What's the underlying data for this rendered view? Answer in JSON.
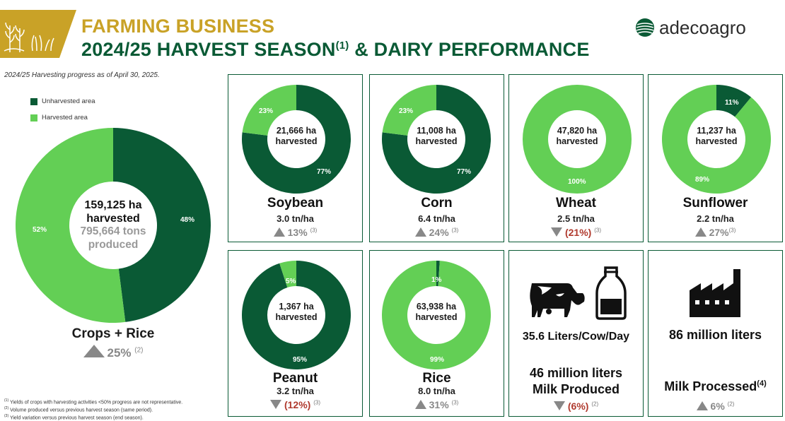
{
  "header": {
    "title_line1": "FARMING BUSINESS",
    "title_line2": "2024/25 HARVEST SEASON",
    "title_line2_sup": "(1)",
    "title_line2_suffix": " & DAIRY PERFORMANCE",
    "brand": "adecoagro"
  },
  "colors": {
    "unharvested": "#0a5a35",
    "harvested": "#63cf55",
    "gold": "#c9a227",
    "negative": "#b03a2e",
    "variation": "#888888"
  },
  "progress_note": "2024/25 Harvesting progress as of April 30, 2025.",
  "legend": {
    "unharvested": "Unharvested area",
    "harvested": "Harvested area"
  },
  "main": {
    "line1": "159,125 ha",
    "line2": "harvested",
    "line3": "795,664 tons",
    "line4": "produced",
    "label": "Crops + Rice",
    "variation": "25%",
    "variation_sup": "(2)"
  },
  "chart_data": [
    {
      "type": "pie",
      "title": "Crops + Rice",
      "categories": [
        "Unharvested area",
        "Harvested area"
      ],
      "values": [
        48,
        52
      ],
      "value_labels": [
        "48%",
        "52%"
      ]
    },
    {
      "type": "pie",
      "title": "Soybean",
      "categories": [
        "Unharvested area",
        "Harvested area"
      ],
      "values": [
        77,
        23
      ],
      "value_labels": [
        "77%",
        "23%"
      ]
    },
    {
      "type": "pie",
      "title": "Corn",
      "categories": [
        "Unharvested area",
        "Harvested area"
      ],
      "values": [
        77,
        23
      ],
      "value_labels": [
        "77%",
        "23%"
      ]
    },
    {
      "type": "pie",
      "title": "Wheat",
      "categories": [
        "Unharvested area",
        "Harvested area"
      ],
      "values": [
        0,
        100
      ],
      "value_labels": [
        "",
        "100%"
      ]
    },
    {
      "type": "pie",
      "title": "Sunflower",
      "categories": [
        "Unharvested area",
        "Harvested area"
      ],
      "values": [
        11,
        89
      ],
      "value_labels": [
        "11%",
        "89%"
      ]
    },
    {
      "type": "pie",
      "title": "Peanut",
      "categories": [
        "Unharvested area",
        "Harvested area"
      ],
      "values": [
        95,
        5
      ],
      "value_labels": [
        "95%",
        "5%"
      ]
    },
    {
      "type": "pie",
      "title": "Rice",
      "categories": [
        "Unharvested area",
        "Harvested area"
      ],
      "values": [
        1,
        99
      ],
      "value_labels": [
        "1%",
        "99%"
      ]
    }
  ],
  "crops": {
    "soybean": {
      "name": "Soybean",
      "ha": "21,666 ha",
      "harvested": "harvested",
      "yield": "3.0 tn/ha",
      "var": "13%",
      "sup": "(3)"
    },
    "corn": {
      "name": "Corn",
      "ha": "11,008 ha",
      "harvested": "harvested",
      "yield": "6.4 tn/ha",
      "var": "24%",
      "sup": "(3)"
    },
    "wheat": {
      "name": "Wheat",
      "ha": "47,820 ha",
      "harvested": "harvested",
      "yield": "2.5 tn/ha",
      "var": "(21%)",
      "sup": "(3)"
    },
    "sunflower": {
      "name": "Sunflower",
      "ha": "11,237 ha",
      "harvested": "harvested",
      "yield": "2.2 tn/ha",
      "var": "27%",
      "sup": "(3)"
    },
    "peanut": {
      "name": "Peanut",
      "ha": "1,367 ha",
      "harvested": "harvested",
      "yield": "3.2 tn/ha",
      "var": "(12%)",
      "sup": "(3)"
    },
    "rice": {
      "name": "Rice",
      "ha": "63,938 ha",
      "harvested": "harvested",
      "yield": "8.0 tn/ha",
      "var": "31%",
      "sup": "(3)"
    }
  },
  "dairy": {
    "liters_per_cow": "35.6 Liters/Cow/Day",
    "produced_line1": "46 million liters",
    "produced_line2": "Milk Produced",
    "produced_var": "(6%)",
    "produced_sup": "(2)",
    "processed_amount": "86 million liters",
    "processed_label": "Milk Processed",
    "processed_label_sup": "(4)",
    "processed_var": "6%",
    "processed_sup": "(2)"
  },
  "footnotes": [
    {
      "sup": "(1)",
      "text": "Yields of crops with harvesting activities <50% progress are not representative."
    },
    {
      "sup": "(2)",
      "text": "Volume produced versus previous harvest season (same period)."
    },
    {
      "sup": "(3)",
      "text": "Yield variation versus previous harvest season (end season)."
    }
  ]
}
